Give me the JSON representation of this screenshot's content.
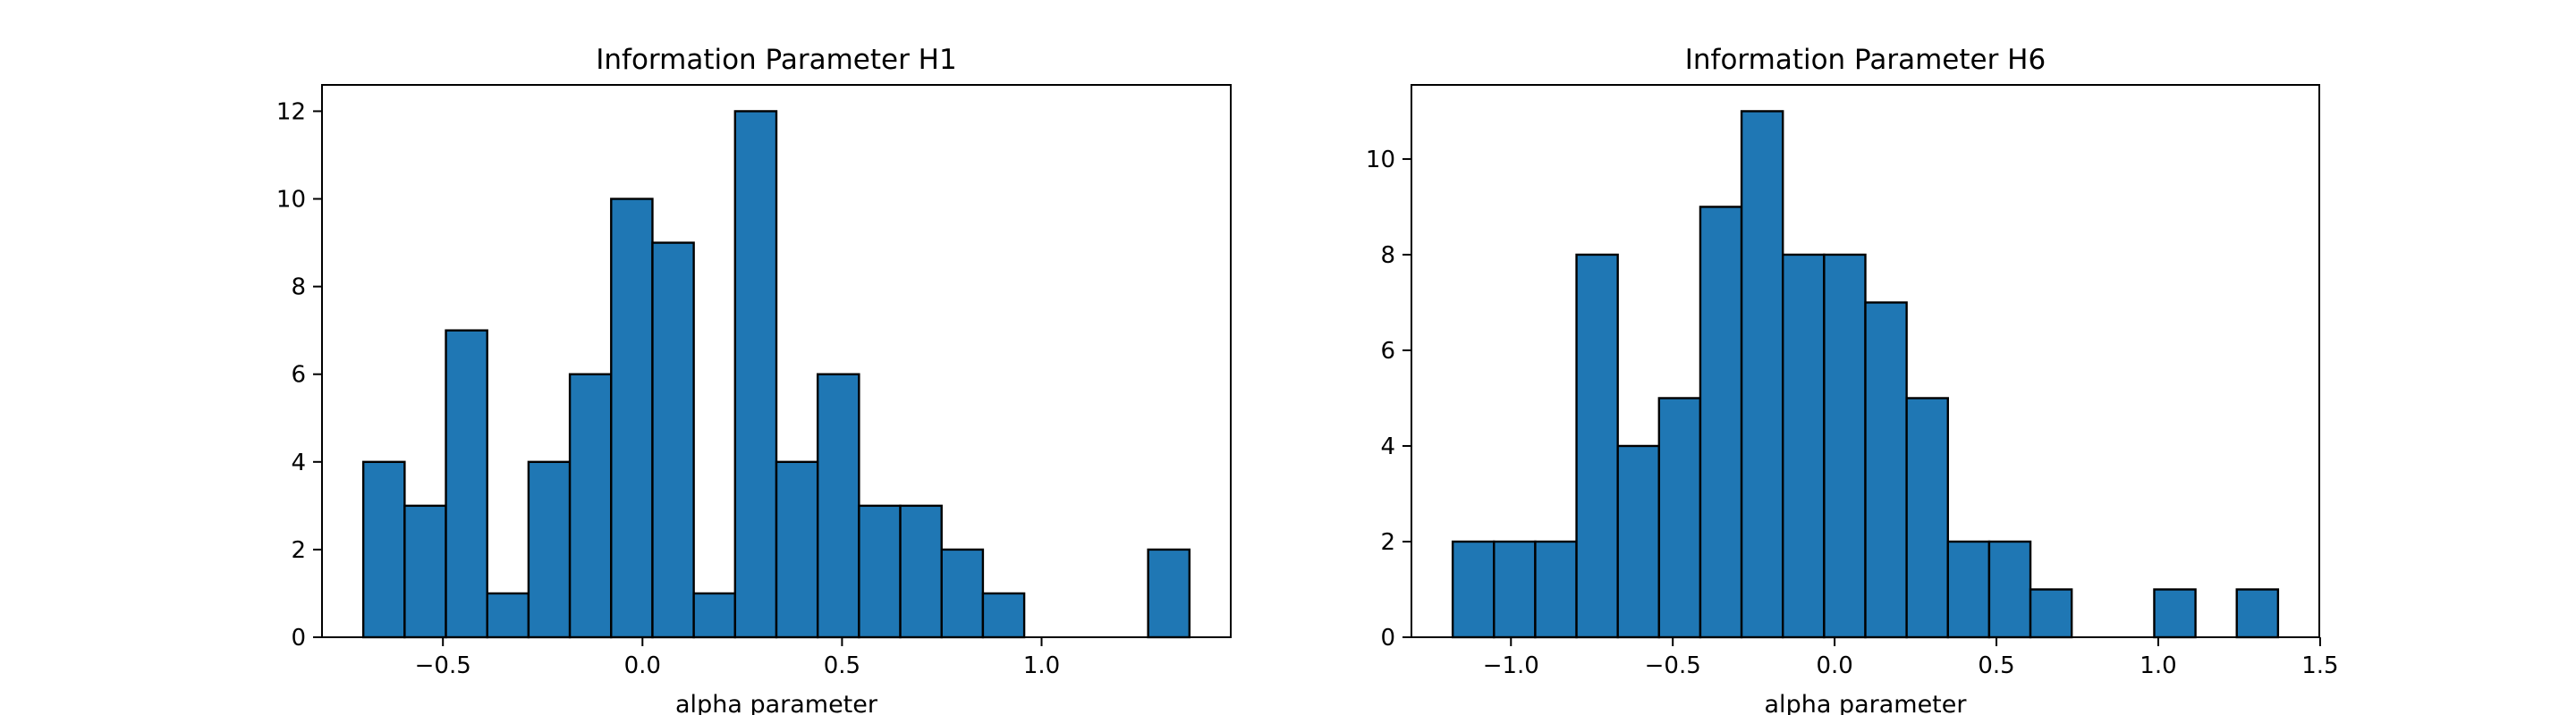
{
  "chart_data": [
    {
      "type": "bar",
      "title": "Information Parameter H1",
      "xlabel": "alpha parameter",
      "ylabel": "",
      "bar_color": "#1f77b4",
      "bin_edges": [
        -0.6995,
        -0.596,
        -0.4925,
        -0.389,
        -0.2855,
        -0.182,
        -0.0785,
        0.025,
        0.1285,
        0.232,
        0.3355,
        0.439,
        0.5425,
        0.646,
        0.7495,
        0.853,
        0.9565,
        1.06,
        1.1635,
        1.267,
        1.3705
      ],
      "counts": [
        4,
        3,
        7,
        1,
        4,
        6,
        10,
        9,
        1,
        12,
        4,
        6,
        3,
        3,
        2,
        1,
        0,
        0,
        0,
        2
      ],
      "xlim": [
        -0.803,
        1.474
      ],
      "ylim": [
        0,
        12.6
      ],
      "xticks": [
        -0.5,
        0.0,
        0.5,
        1.0
      ],
      "xtick_labels": [
        "−0.5",
        "0.0",
        "0.5",
        "1.0"
      ],
      "yticks": [
        0,
        2,
        4,
        6,
        8,
        10,
        12
      ],
      "ytick_labels": [
        "0",
        "2",
        "4",
        "6",
        "8",
        "10",
        "12"
      ],
      "grid": false,
      "legend": "none"
    },
    {
      "type": "bar",
      "title": "Information Parameter H6",
      "xlabel": "alpha parameter",
      "ylabel": "",
      "bar_color": "#1f77b4",
      "bin_edges": [
        -1.18,
        -1.0525,
        -0.925,
        -0.7975,
        -0.67,
        -0.5425,
        -0.415,
        -0.2875,
        -0.16,
        -0.0325,
        0.095,
        0.2225,
        0.35,
        0.4775,
        0.605,
        0.7325,
        0.86,
        0.9875,
        1.115,
        1.2425,
        1.37
      ],
      "counts": [
        2,
        2,
        2,
        8,
        4,
        5,
        9,
        11,
        8,
        8,
        7,
        5,
        2,
        2,
        1,
        0,
        0,
        1,
        0,
        1
      ],
      "xlim": [
        -1.3075,
        1.4975
      ],
      "ylim": [
        0,
        11.55
      ],
      "xticks": [
        -1.0,
        -0.5,
        0.0,
        0.5,
        1.0,
        1.5
      ],
      "xtick_labels": [
        "−1.0",
        "−0.5",
        "0.0",
        "0.5",
        "1.0",
        "1.5"
      ],
      "yticks": [
        0,
        2,
        4,
        6,
        8,
        10
      ],
      "ytick_labels": [
        "0",
        "2",
        "4",
        "6",
        "8",
        "10"
      ],
      "grid": false,
      "legend": "none"
    }
  ]
}
